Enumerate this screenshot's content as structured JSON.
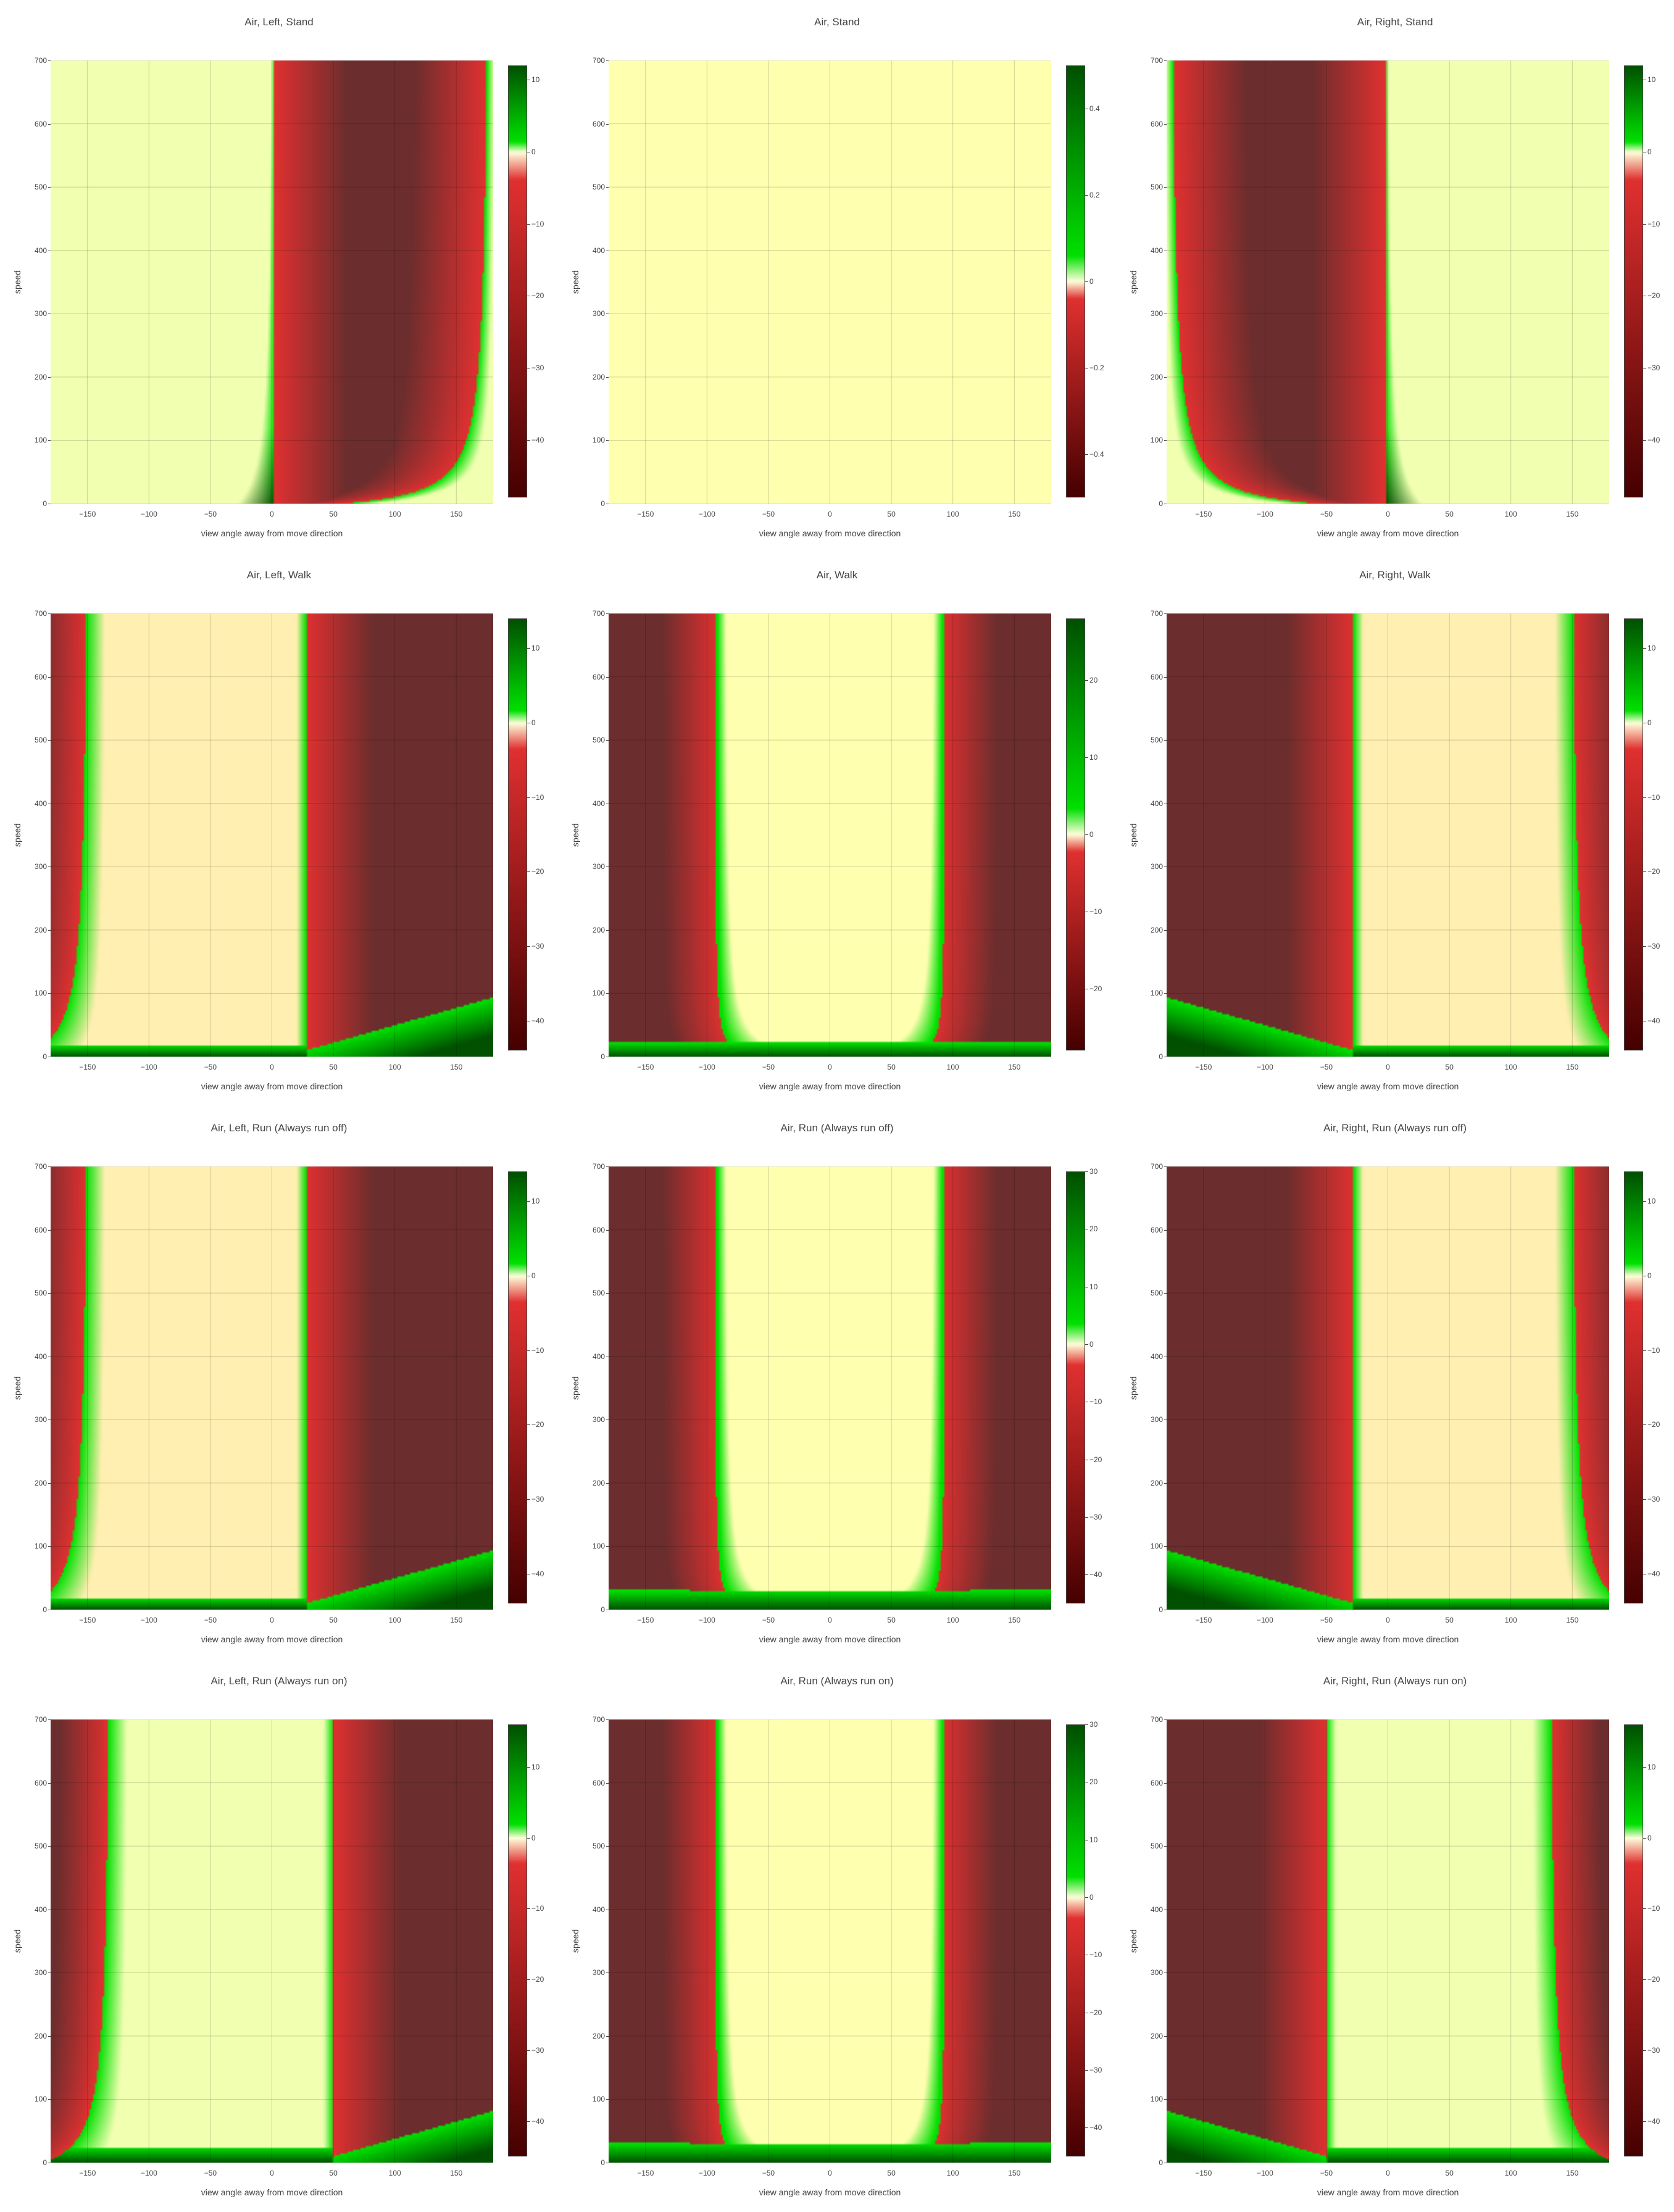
{
  "colors": {
    "light_cream": "#ffffb0",
    "yellow_green": "#f0ffb0",
    "peach": "#ffefb0",
    "bright_green": "#00e000",
    "dark_green": "#005000",
    "bright_red": "#e03030",
    "dark_red": "#6b2d2d"
  },
  "chart_data": [
    {
      "type": "heatmap",
      "title": "Air, Left, Stand",
      "xlabel": "view angle away from move direction",
      "ylabel": "speed",
      "xlim": [
        -180,
        180
      ],
      "ylim": [
        0,
        700
      ],
      "xticks": [
        -150,
        -100,
        -50,
        0,
        50,
        100,
        150
      ],
      "yticks": [
        0,
        100,
        200,
        300,
        400,
        500,
        600,
        700
      ],
      "colorbar": {
        "range": [
          -48,
          12
        ],
        "ticks": [
          10,
          0,
          -10,
          -20,
          -30,
          -40
        ]
      },
      "pattern": "left-stand"
    },
    {
      "type": "heatmap",
      "title": "Air, Stand",
      "xlabel": "view angle away from move direction",
      "ylabel": "speed",
      "xlim": [
        -180,
        180
      ],
      "ylim": [
        0,
        700
      ],
      "xticks": [
        -150,
        -100,
        -50,
        0,
        50,
        100,
        150
      ],
      "yticks": [
        0,
        100,
        200,
        300,
        400,
        500,
        600,
        700
      ],
      "colorbar": {
        "range": [
          -0.5,
          0.5
        ],
        "ticks": [
          0.4,
          0.2,
          0,
          -0.2,
          -0.4
        ]
      },
      "pattern": "stand"
    },
    {
      "type": "heatmap",
      "title": "Air, Right, Stand",
      "xlabel": "view angle away from move direction",
      "ylabel": "speed",
      "xlim": [
        -180,
        180
      ],
      "ylim": [
        0,
        700
      ],
      "xticks": [
        -150,
        -100,
        -50,
        0,
        50,
        100,
        150
      ],
      "yticks": [
        0,
        100,
        200,
        300,
        400,
        500,
        600,
        700
      ],
      "colorbar": {
        "range": [
          -48,
          12
        ],
        "ticks": [
          10,
          0,
          -10,
          -20,
          -30,
          -40
        ]
      },
      "pattern": "right-stand"
    },
    {
      "type": "heatmap",
      "title": "Air, Left, Walk",
      "xlabel": "view angle away from move direction",
      "ylabel": "speed",
      "xlim": [
        -180,
        180
      ],
      "ylim": [
        0,
        700
      ],
      "xticks": [
        -150,
        -100,
        -50,
        0,
        50,
        100,
        150
      ],
      "yticks": [
        0,
        100,
        200,
        300,
        400,
        500,
        600,
        700
      ],
      "colorbar": {
        "range": [
          -44,
          14
        ],
        "ticks": [
          10,
          0,
          -10,
          -20,
          -30,
          -40
        ]
      },
      "pattern": "left-walk"
    },
    {
      "type": "heatmap",
      "title": "Air, Walk",
      "xlabel": "view angle away from move direction",
      "ylabel": "speed",
      "xlim": [
        -180,
        180
      ],
      "ylim": [
        0,
        700
      ],
      "xticks": [
        -150,
        -100,
        -50,
        0,
        50,
        100,
        150
      ],
      "yticks": [
        0,
        100,
        200,
        300,
        400,
        500,
        600,
        700
      ],
      "colorbar": {
        "range": [
          -28,
          28
        ],
        "ticks": [
          20,
          10,
          0,
          -10,
          -20
        ]
      },
      "pattern": "walk"
    },
    {
      "type": "heatmap",
      "title": "Air, Right, Walk",
      "xlabel": "view angle away from move direction",
      "ylabel": "speed",
      "xlim": [
        -180,
        180
      ],
      "ylim": [
        0,
        700
      ],
      "xticks": [
        -150,
        -100,
        -50,
        0,
        50,
        100,
        150
      ],
      "yticks": [
        0,
        100,
        200,
        300,
        400,
        500,
        600,
        700
      ],
      "colorbar": {
        "range": [
          -44,
          14
        ],
        "ticks": [
          10,
          0,
          -10,
          -20,
          -30,
          -40
        ]
      },
      "pattern": "right-walk"
    },
    {
      "type": "heatmap",
      "title": "Air, Left, Run (Always run off)",
      "xlabel": "view angle away from move direction",
      "ylabel": "speed",
      "xlim": [
        -180,
        180
      ],
      "ylim": [
        0,
        700
      ],
      "xticks": [
        -150,
        -100,
        -50,
        0,
        50,
        100,
        150
      ],
      "yticks": [
        0,
        100,
        200,
        300,
        400,
        500,
        600,
        700
      ],
      "colorbar": {
        "range": [
          -44,
          14
        ],
        "ticks": [
          10,
          0,
          -10,
          -20,
          -30,
          -40
        ]
      },
      "pattern": "left-walk"
    },
    {
      "type": "heatmap",
      "title": "Air, Run (Always run off)",
      "xlabel": "view angle away from move direction",
      "ylabel": "speed",
      "xlim": [
        -180,
        180
      ],
      "ylim": [
        0,
        700
      ],
      "xticks": [
        -150,
        -100,
        -50,
        0,
        50,
        100,
        150
      ],
      "yticks": [
        0,
        100,
        200,
        300,
        400,
        500,
        600,
        700
      ],
      "colorbar": {
        "range": [
          -45,
          30
        ],
        "ticks": [
          30,
          20,
          10,
          0,
          -10,
          -20,
          -30,
          -40
        ]
      },
      "pattern": "run"
    },
    {
      "type": "heatmap",
      "title": "Air, Right, Run (Always run off)",
      "xlabel": "view angle away from move direction",
      "ylabel": "speed",
      "xlim": [
        -180,
        180
      ],
      "ylim": [
        0,
        700
      ],
      "xticks": [
        -150,
        -100,
        -50,
        0,
        50,
        100,
        150
      ],
      "yticks": [
        0,
        100,
        200,
        300,
        400,
        500,
        600,
        700
      ],
      "colorbar": {
        "range": [
          -44,
          14
        ],
        "ticks": [
          10,
          0,
          -10,
          -20,
          -30,
          -40
        ]
      },
      "pattern": "right-walk"
    },
    {
      "type": "heatmap",
      "title": "Air, Left, Run (Always run on)",
      "xlabel": "view angle away from move direction",
      "ylabel": "speed",
      "xlim": [
        -180,
        180
      ],
      "ylim": [
        0,
        700
      ],
      "xticks": [
        -150,
        -100,
        -50,
        0,
        50,
        100,
        150
      ],
      "yticks": [
        0,
        100,
        200,
        300,
        400,
        500,
        600,
        700
      ],
      "colorbar": {
        "range": [
          -45,
          16
        ],
        "ticks": [
          10,
          0,
          -10,
          -20,
          -30,
          -40
        ]
      },
      "pattern": "left-run-on"
    },
    {
      "type": "heatmap",
      "title": "Air, Run (Always run on)",
      "xlabel": "view angle away from move direction",
      "ylabel": "speed",
      "xlim": [
        -180,
        180
      ],
      "ylim": [
        0,
        700
      ],
      "xticks": [
        -150,
        -100,
        -50,
        0,
        50,
        100,
        150
      ],
      "yticks": [
        0,
        100,
        200,
        300,
        400,
        500,
        600,
        700
      ],
      "colorbar": {
        "range": [
          -45,
          30
        ],
        "ticks": [
          30,
          20,
          10,
          0,
          -10,
          -20,
          -30,
          -40
        ]
      },
      "pattern": "run"
    },
    {
      "type": "heatmap",
      "title": "Air, Right, Run (Always run on)",
      "xlabel": "view angle away from move direction",
      "ylabel": "speed",
      "xlim": [
        -180,
        180
      ],
      "ylim": [
        0,
        700
      ],
      "xticks": [
        -150,
        -100,
        -50,
        0,
        50,
        100,
        150
      ],
      "yticks": [
        0,
        100,
        200,
        300,
        400,
        500,
        600,
        700
      ],
      "colorbar": {
        "range": [
          -45,
          16
        ],
        "ticks": [
          10,
          0,
          -10,
          -20,
          -30,
          -40
        ]
      },
      "pattern": "right-run-on"
    }
  ]
}
